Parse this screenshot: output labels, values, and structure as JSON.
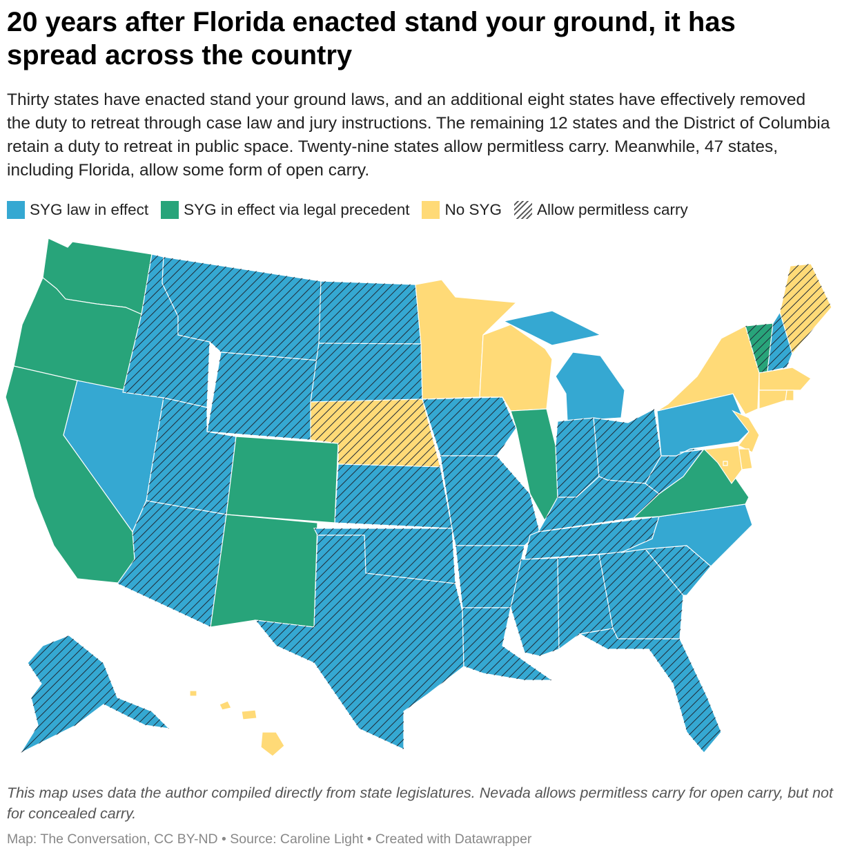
{
  "header": {
    "title": "20 years after Florida enacted stand your ground, it has spread across the country",
    "subtitle": "Thirty states have enacted stand your ground laws, and an additional eight states have effectively removed the duty to retreat through case law and jury instructions. The remaining 12 states and the District of Columbia retain a duty to retreat in public space. Twenty-nine states allow permitless carry. Meanwhile, 47 states, including Florida, allow some form of open carry."
  },
  "legend": {
    "items": [
      {
        "label": "SYG law in effect",
        "color": "#35a8d2",
        "pattern": false
      },
      {
        "label": "SYG in effect via legal precedent",
        "color": "#28a47a",
        "pattern": false
      },
      {
        "label": "No SYG",
        "color": "#ffda77",
        "pattern": false
      },
      {
        "label": "Allow permitless carry",
        "color": "#ffffff",
        "pattern": true
      }
    ]
  },
  "colors": {
    "syg_law": "#35a8d2",
    "syg_precedent": "#28a47a",
    "no_syg": "#ffda77",
    "hatch": "#1f2a36",
    "border": "#ffffff"
  },
  "map": {
    "icon": "us-states-choropleth-map",
    "states": [
      {
        "name": "WA",
        "category": "syg_precedent",
        "permitless": false
      },
      {
        "name": "OR",
        "category": "syg_precedent",
        "permitless": false
      },
      {
        "name": "CA",
        "category": "syg_precedent",
        "permitless": false
      },
      {
        "name": "NV",
        "category": "syg_law",
        "permitless": false
      },
      {
        "name": "ID",
        "category": "syg_law",
        "permitless": true
      },
      {
        "name": "MT",
        "category": "syg_law",
        "permitless": true
      },
      {
        "name": "WY",
        "category": "syg_law",
        "permitless": true
      },
      {
        "name": "UT",
        "category": "syg_law",
        "permitless": true
      },
      {
        "name": "AZ",
        "category": "syg_law",
        "permitless": true
      },
      {
        "name": "CO",
        "category": "syg_precedent",
        "permitless": false
      },
      {
        "name": "NM",
        "category": "syg_precedent",
        "permitless": false
      },
      {
        "name": "ND",
        "category": "syg_law",
        "permitless": true
      },
      {
        "name": "SD",
        "category": "syg_law",
        "permitless": true
      },
      {
        "name": "NE",
        "category": "no_syg",
        "permitless": true
      },
      {
        "name": "KS",
        "category": "syg_law",
        "permitless": true
      },
      {
        "name": "OK",
        "category": "syg_law",
        "permitless": true
      },
      {
        "name": "TX",
        "category": "syg_law",
        "permitless": true
      },
      {
        "name": "MN",
        "category": "no_syg",
        "permitless": false
      },
      {
        "name": "IA",
        "category": "syg_law",
        "permitless": true
      },
      {
        "name": "MO",
        "category": "syg_law",
        "permitless": true
      },
      {
        "name": "AR",
        "category": "syg_law",
        "permitless": true
      },
      {
        "name": "LA",
        "category": "syg_law",
        "permitless": true
      },
      {
        "name": "WI",
        "category": "no_syg",
        "permitless": false
      },
      {
        "name": "IL",
        "category": "syg_precedent",
        "permitless": false
      },
      {
        "name": "MI",
        "category": "syg_law",
        "permitless": false
      },
      {
        "name": "IN",
        "category": "syg_law",
        "permitless": true
      },
      {
        "name": "OH",
        "category": "syg_law",
        "permitless": true
      },
      {
        "name": "KY",
        "category": "syg_law",
        "permitless": true
      },
      {
        "name": "TN",
        "category": "syg_law",
        "permitless": true
      },
      {
        "name": "MS",
        "category": "syg_law",
        "permitless": true
      },
      {
        "name": "AL",
        "category": "syg_law",
        "permitless": true
      },
      {
        "name": "GA",
        "category": "syg_law",
        "permitless": true
      },
      {
        "name": "FL",
        "category": "syg_law",
        "permitless": true
      },
      {
        "name": "SC",
        "category": "syg_law",
        "permitless": true
      },
      {
        "name": "NC",
        "category": "syg_law",
        "permitless": false
      },
      {
        "name": "VA",
        "category": "syg_precedent",
        "permitless": false
      },
      {
        "name": "WV",
        "category": "syg_law",
        "permitless": true
      },
      {
        "name": "PA",
        "category": "syg_law",
        "permitless": false
      },
      {
        "name": "NY",
        "category": "no_syg",
        "permitless": false
      },
      {
        "name": "VT",
        "category": "syg_precedent",
        "permitless": true
      },
      {
        "name": "NH",
        "category": "syg_law",
        "permitless": true
      },
      {
        "name": "ME",
        "category": "no_syg",
        "permitless": true
      },
      {
        "name": "MA",
        "category": "no_syg",
        "permitless": false
      },
      {
        "name": "RI",
        "category": "no_syg",
        "permitless": false
      },
      {
        "name": "CT",
        "category": "no_syg",
        "permitless": false
      },
      {
        "name": "NJ",
        "category": "no_syg",
        "permitless": false
      },
      {
        "name": "DE",
        "category": "no_syg",
        "permitless": false
      },
      {
        "name": "MD",
        "category": "no_syg",
        "permitless": false
      },
      {
        "name": "DC",
        "category": "no_syg",
        "permitless": false
      },
      {
        "name": "AK",
        "category": "syg_law",
        "permitless": true
      },
      {
        "name": "HI",
        "category": "no_syg",
        "permitless": false
      }
    ]
  },
  "footer": {
    "notes": "This map uses data the author compiled directly from state legislatures. Nevada allows permitless carry for open carry, but not for concealed carry.",
    "credit": "Map: The Conversation, CC BY-ND • Source: Caroline Light • Created with Datawrapper"
  }
}
